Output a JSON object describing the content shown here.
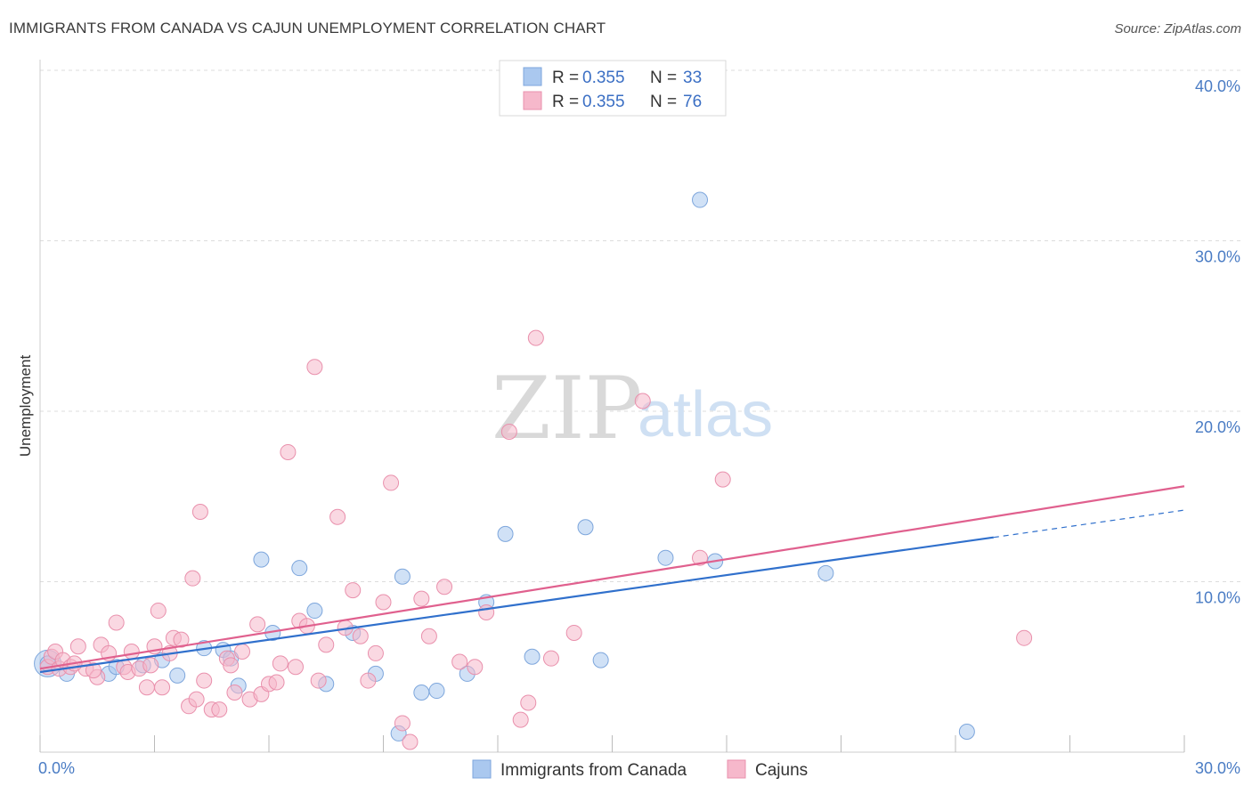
{
  "title": "IMMIGRANTS FROM CANADA VS CAJUN UNEMPLOYMENT CORRELATION CHART",
  "source": "Source: ZipAtlas.com",
  "watermark": {
    "zip": "ZIP",
    "atlas": "atlas"
  },
  "chart_data": {
    "type": "scatter",
    "title": "IMMIGRANTS FROM CANADA VS CAJUN UNEMPLOYMENT CORRELATION CHART",
    "xlabel": "",
    "ylabel": "Unemployment",
    "xlim": [
      0,
      30
    ],
    "ylim": [
      0,
      40
    ],
    "x_tick_labels": [
      "0.0%",
      "30.0%"
    ],
    "y_ticks": [
      10,
      20,
      30,
      40
    ],
    "y_tick_labels": [
      "10.0%",
      "20.0%",
      "30.0%",
      "40.0%"
    ],
    "grid": true,
    "legend_top": [
      {
        "r_label": "R = ",
        "r": "0.355",
        "n_label": "N = ",
        "n": "33",
        "color": "#aac8ef"
      },
      {
        "r_label": "R = ",
        "r": "0.355",
        "n_label": "N = ",
        "n": "76",
        "color": "#f6b8cb"
      }
    ],
    "legend_bottom": [
      {
        "name": "Immigrants from Canada",
        "color": "#aac8ef"
      },
      {
        "name": "Cajuns",
        "color": "#f6b8cb"
      }
    ],
    "series": [
      {
        "name": "Immigrants from Canada",
        "color": "#aac8ef",
        "stroke": "#7da6dc",
        "line_color": "#3070cc",
        "trend": {
          "x0": 0,
          "y0": 4.7,
          "x1": 25.0,
          "y1": 12.6,
          "dash_to_x": 30,
          "dash_to_y": 14.2
        },
        "points": [
          [
            0.2,
            5.2
          ],
          [
            0.7,
            4.6
          ],
          [
            1.8,
            4.6
          ],
          [
            2.0,
            5.0
          ],
          [
            2.7,
            5.1
          ],
          [
            3.2,
            5.4
          ],
          [
            3.6,
            4.5
          ],
          [
            4.3,
            6.1
          ],
          [
            4.8,
            6.0
          ],
          [
            5.0,
            5.5
          ],
          [
            5.2,
            3.9
          ],
          [
            5.8,
            11.3
          ],
          [
            6.1,
            7.0
          ],
          [
            6.8,
            10.8
          ],
          [
            7.2,
            8.3
          ],
          [
            7.5,
            4.0
          ],
          [
            8.2,
            7.0
          ],
          [
            8.8,
            4.6
          ],
          [
            9.4,
            1.1
          ],
          [
            9.5,
            10.3
          ],
          [
            10.0,
            3.5
          ],
          [
            10.4,
            3.6
          ],
          [
            11.2,
            4.6
          ],
          [
            11.7,
            8.8
          ],
          [
            12.2,
            12.8
          ],
          [
            12.9,
            5.6
          ],
          [
            14.3,
            13.2
          ],
          [
            14.7,
            5.4
          ],
          [
            16.4,
            11.4
          ],
          [
            17.3,
            32.4
          ],
          [
            17.7,
            11.2
          ],
          [
            20.6,
            10.5
          ],
          [
            24.3,
            1.2
          ]
        ]
      },
      {
        "name": "Cajuns",
        "color": "#f6b8cb",
        "stroke": "#e990ac",
        "line_color": "#e0608e",
        "trend": {
          "x0": 0,
          "y0": 4.9,
          "x1": 30,
          "y1": 15.6
        },
        "points": [
          [
            0.2,
            5.0
          ],
          [
            0.3,
            5.6
          ],
          [
            0.4,
            5.9
          ],
          [
            0.5,
            4.9
          ],
          [
            0.6,
            5.4
          ],
          [
            0.8,
            5.0
          ],
          [
            1.0,
            6.2
          ],
          [
            1.2,
            4.9
          ],
          [
            1.5,
            4.4
          ],
          [
            1.6,
            6.3
          ],
          [
            1.8,
            5.8
          ],
          [
            2.0,
            7.6
          ],
          [
            2.2,
            5.0
          ],
          [
            2.3,
            4.7
          ],
          [
            2.4,
            5.9
          ],
          [
            2.6,
            4.9
          ],
          [
            2.8,
            3.8
          ],
          [
            3.0,
            6.2
          ],
          [
            3.1,
            8.3
          ],
          [
            3.2,
            3.8
          ],
          [
            3.4,
            5.8
          ],
          [
            3.5,
            6.7
          ],
          [
            3.7,
            6.6
          ],
          [
            3.9,
            2.7
          ],
          [
            4.0,
            10.2
          ],
          [
            4.1,
            3.1
          ],
          [
            4.2,
            14.1
          ],
          [
            4.3,
            4.2
          ],
          [
            4.5,
            2.5
          ],
          [
            4.7,
            2.5
          ],
          [
            4.9,
            5.5
          ],
          [
            5.0,
            5.1
          ],
          [
            5.1,
            3.5
          ],
          [
            5.3,
            5.9
          ],
          [
            5.5,
            3.1
          ],
          [
            5.7,
            7.5
          ],
          [
            5.8,
            3.4
          ],
          [
            6.0,
            4.0
          ],
          [
            6.3,
            5.2
          ],
          [
            6.5,
            17.6
          ],
          [
            6.7,
            5.0
          ],
          [
            6.8,
            7.7
          ],
          [
            7.0,
            7.4
          ],
          [
            7.2,
            22.6
          ],
          [
            7.3,
            4.2
          ],
          [
            7.5,
            6.3
          ],
          [
            7.8,
            13.8
          ],
          [
            8.0,
            7.3
          ],
          [
            8.2,
            9.5
          ],
          [
            8.4,
            6.8
          ],
          [
            8.6,
            4.2
          ],
          [
            8.8,
            5.8
          ],
          [
            9.0,
            8.8
          ],
          [
            9.2,
            15.8
          ],
          [
            9.5,
            1.7
          ],
          [
            9.7,
            0.6
          ],
          [
            10.0,
            9.0
          ],
          [
            10.2,
            6.8
          ],
          [
            10.6,
            9.7
          ],
          [
            11.0,
            5.3
          ],
          [
            11.4,
            5.0
          ],
          [
            11.7,
            8.2
          ],
          [
            12.3,
            18.8
          ],
          [
            12.6,
            1.9
          ],
          [
            12.8,
            2.9
          ],
          [
            13.0,
            24.3
          ],
          [
            13.4,
            5.5
          ],
          [
            14.0,
            7.0
          ],
          [
            15.8,
            20.6
          ],
          [
            17.3,
            11.4
          ],
          [
            17.9,
            16.0
          ],
          [
            25.8,
            6.7
          ],
          [
            0.9,
            5.2
          ],
          [
            1.4,
            4.8
          ],
          [
            2.9,
            5.1
          ],
          [
            6.2,
            4.1
          ]
        ]
      }
    ]
  }
}
